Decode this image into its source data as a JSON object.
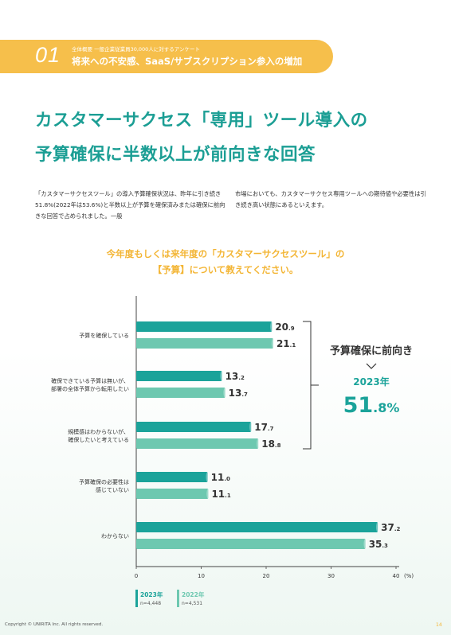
{
  "banner": {
    "number": "01",
    "subtitle": "全体概要 一般企業従業員30,000人に対するアンケート",
    "title": "将来への不安感、SaaS/サブスクリプション参入の増加"
  },
  "headline": {
    "line1": "カスタマーサクセス「専用」ツール導入の",
    "line2": "予算確保に半数以上が前向きな回答"
  },
  "body": {
    "left": "「カスタマーサクセスツール」の導入予算確保状況は、昨年に引き続き51.8%(2022年は53.6%)と半数以上が予算を確保済みまたは確保に前向きな回答で占められました。一般",
    "right": "市場においても、カスタマーサクセス専用ツールへの期待値や必要性は引き続き高い状態にあるといえます。"
  },
  "question": {
    "line1": "今年度もしくは来年度の「カスタマーサクセスツール」の",
    "line2": "【予算】について教えてください。"
  },
  "callout": {
    "label": "予算確保に前向き",
    "year": "2023年",
    "value": "51.8",
    "unit": "%"
  },
  "chart_data": {
    "type": "bar",
    "orientation": "horizontal",
    "categories": [
      [
        "予算を確保している"
      ],
      [
        "確保できている予算は無いが、",
        "部署の全体予算から転用したい"
      ],
      [
        "規模感はわからないが、",
        "確保したいと考えている"
      ],
      [
        "予算確保の必要性は",
        "感じていない"
      ],
      [
        "わからない"
      ]
    ],
    "series": [
      {
        "name": "2023年",
        "n": "n=4,448",
        "color": "#1ba39a",
        "values": [
          20.9,
          13.2,
          17.7,
          11.0,
          37.2
        ]
      },
      {
        "name": "2022年",
        "n": "n=4,531",
        "color": "#6dc8b0",
        "values": [
          21.1,
          13.7,
          18.8,
          11.1,
          35.3
        ]
      }
    ],
    "xlim": [
      0,
      40
    ],
    "xticks": [
      0,
      10,
      20,
      30,
      40
    ],
    "xunit": "(%)",
    "legend": "bottom-left"
  },
  "footer": {
    "copyright": "Copyright © UNIRITA Inc. All rights reserved.",
    "page": "14"
  }
}
